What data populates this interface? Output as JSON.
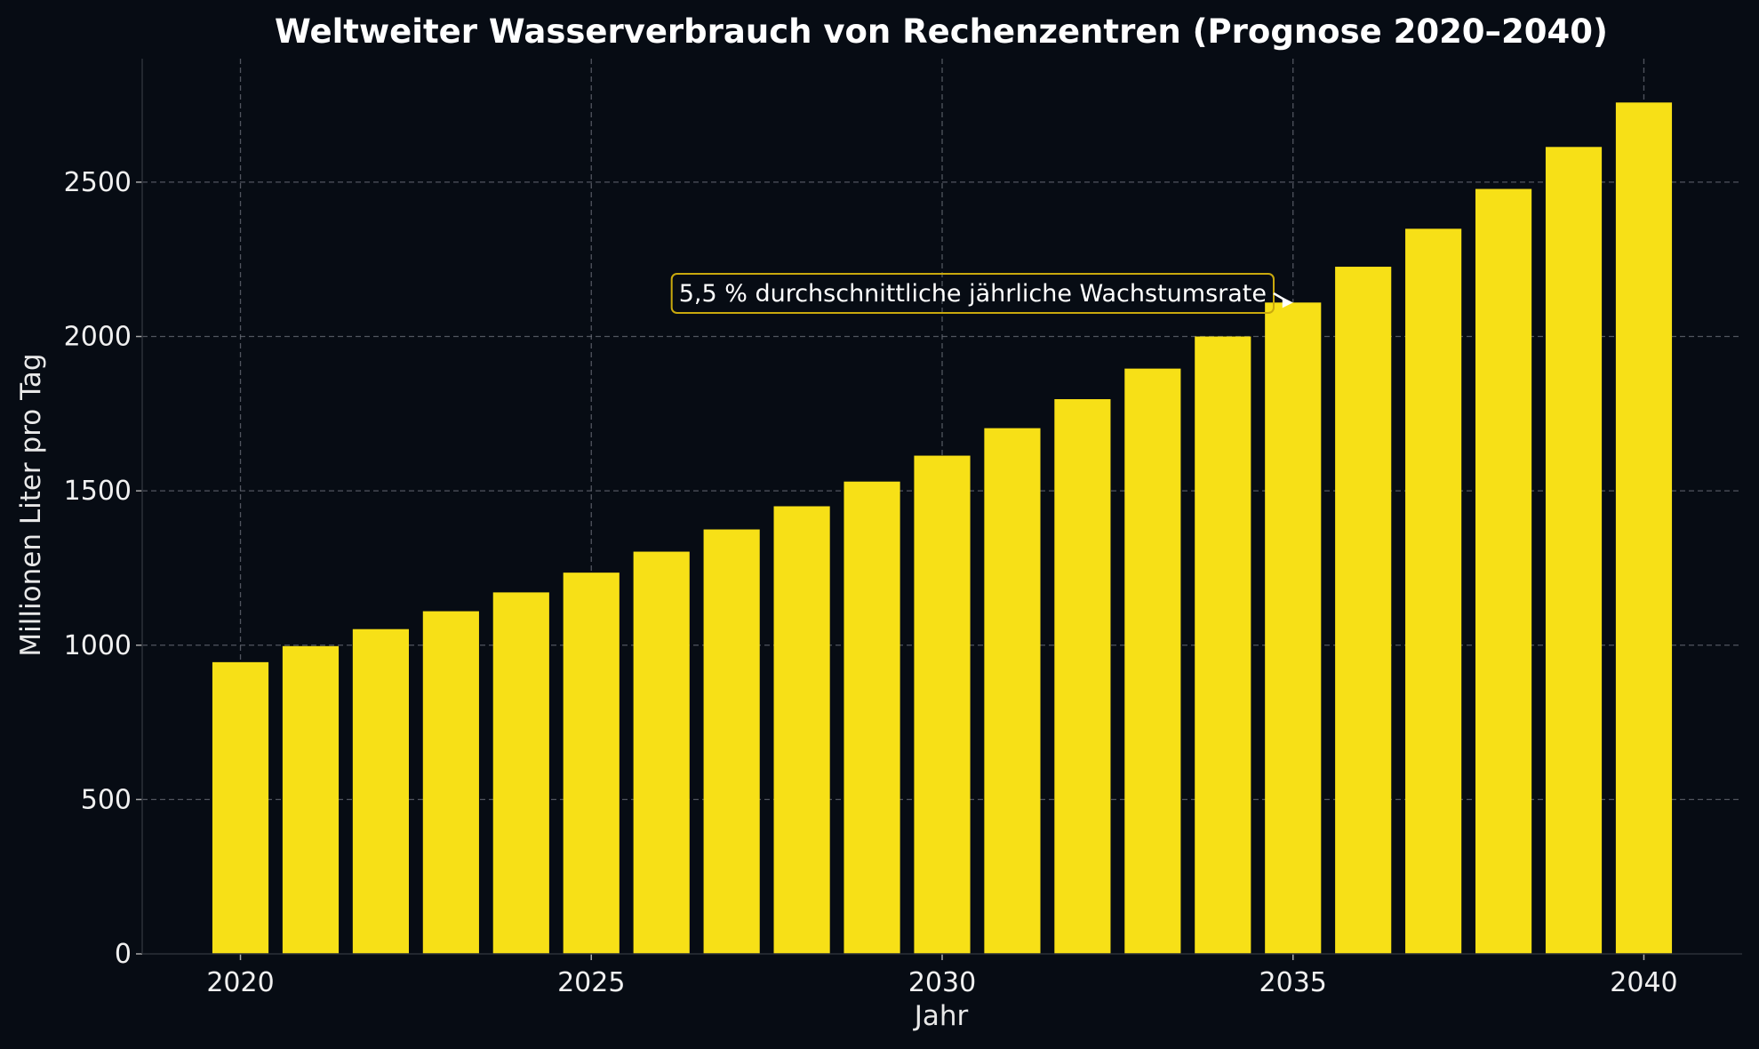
{
  "chart_data": {
    "type": "bar",
    "title": "Weltweiter Wasserverbrauch von Rechenzentren (Prognose 2020–2040)",
    "xlabel": "Jahr",
    "ylabel": "Millionen Liter pro Tag",
    "x": [
      2020,
      2021,
      2022,
      2023,
      2024,
      2025,
      2026,
      2027,
      2028,
      2029,
      2030,
      2031,
      2032,
      2033,
      2034,
      2035,
      2036,
      2037,
      2038,
      2039,
      2040
    ],
    "values": [
      945,
      997,
      1052,
      1110,
      1171,
      1235,
      1303,
      1375,
      1450,
      1530,
      1614,
      1703,
      1797,
      1896,
      2000,
      2110,
      2226,
      2349,
      2478,
      2614,
      2758
    ],
    "xticks": [
      "2020",
      "2025",
      "2030",
      "2035",
      "2040"
    ],
    "yticks": [
      "0",
      "500",
      "1000",
      "1500",
      "2000",
      "2500"
    ],
    "xlim": [
      2018.6,
      2041.4
    ],
    "ylim": [
      0,
      2900
    ],
    "grid": true,
    "bar_color": "#f7e017",
    "background_color": "#070c14",
    "annotation": {
      "text": "5,5 % durchschnittliche jährliche Wachstumsrate",
      "target_x": 2035,
      "target_y": 2110,
      "box_color": "#c9a90d"
    }
  }
}
